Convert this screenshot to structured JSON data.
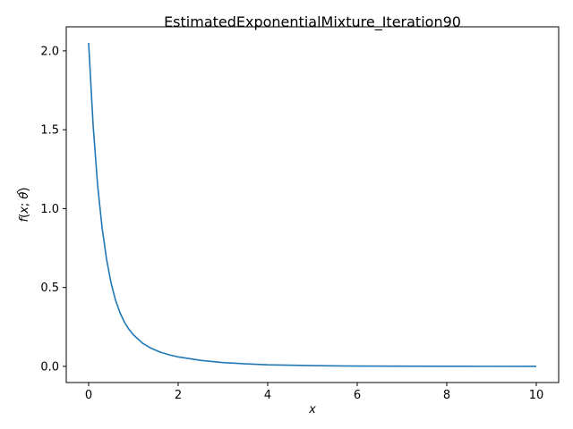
{
  "chart_data": {
    "type": "line",
    "title": "EstimatedExponentialMixture_Iteration90",
    "xlabel": "x",
    "ylabel_parts": [
      "f",
      "(",
      "x",
      "; ",
      "θ",
      ")"
    ],
    "ylabel_hat": "^",
    "xlim": [
      -0.5,
      10.5
    ],
    "ylim": [
      -0.1025,
      2.1525
    ],
    "xticks": [
      0,
      2,
      4,
      6,
      8,
      10
    ],
    "xtick_labels": [
      "0",
      "2",
      "4",
      "6",
      "8",
      "10"
    ],
    "yticks": [
      0.0,
      0.5,
      1.0,
      1.5,
      2.0
    ],
    "ytick_labels": [
      "0.0",
      "0.5",
      "1.0",
      "1.5",
      "2.0"
    ],
    "grid": false,
    "series": [
      {
        "color": "#1f77b4",
        "x": [
          0,
          0.1,
          0.2,
          0.3,
          0.4,
          0.5,
          0.6,
          0.7,
          0.8,
          0.9,
          1.0,
          1.2,
          1.4,
          1.6,
          1.8,
          2.0,
          2.5,
          3.0,
          3.5,
          4.0,
          5.0,
          6.0,
          7.0,
          8.0,
          9.0,
          10.0
        ],
        "y": [
          2.05,
          1.53,
          1.15,
          0.88,
          0.68,
          0.53,
          0.42,
          0.34,
          0.28,
          0.235,
          0.2,
          0.148,
          0.114,
          0.09,
          0.073,
          0.06,
          0.038,
          0.024,
          0.016,
          0.01,
          0.0045,
          0.002,
          0.001,
          0.0005,
          0.0002,
          0.0001
        ]
      }
    ]
  }
}
